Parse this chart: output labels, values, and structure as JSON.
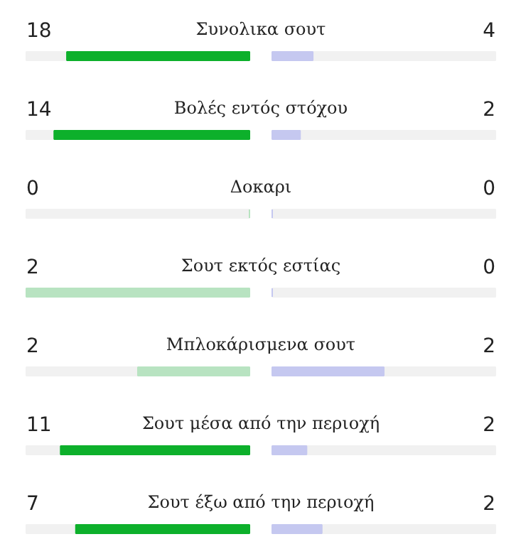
{
  "chart_data": {
    "type": "other",
    "data_labels": true,
    "categories": [
      "Συνολικα σουτ",
      "Βολές εντός στόχου",
      "Δοκαρι",
      "Σουτ εκτός εστίας",
      "Μπλοκάρισμενα σουτ",
      "Σουτ μέσα από την περιοχή",
      "Σουτ έξω από την περιοχή"
    ],
    "series": [
      {
        "values": [
          18,
          14,
          0,
          2,
          2,
          11,
          7
        ],
        "colors": [
          "#0db02b",
          "#0db02b",
          "#b8e3c1",
          "#b8e3c1",
          "#b8e3c1",
          "#0db02b",
          "#0db02b"
        ]
      },
      {
        "values": [
          4,
          2,
          0,
          0,
          2,
          2,
          2
        ],
        "color": "#c5c8f0"
      }
    ]
  }
}
